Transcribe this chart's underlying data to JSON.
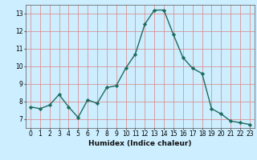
{
  "x": [
    0,
    1,
    2,
    3,
    4,
    5,
    6,
    7,
    8,
    9,
    10,
    11,
    12,
    13,
    14,
    15,
    16,
    17,
    18,
    19,
    20,
    21,
    22,
    23
  ],
  "y": [
    7.7,
    7.6,
    7.8,
    8.4,
    7.7,
    7.1,
    8.1,
    7.9,
    8.8,
    8.9,
    9.9,
    10.7,
    12.4,
    13.2,
    13.2,
    11.8,
    10.5,
    9.9,
    9.6,
    7.6,
    7.3,
    6.9,
    6.8,
    6.7
  ],
  "line_color": "#1f6b5e",
  "marker": "D",
  "markersize": 2.2,
  "linewidth": 1.0,
  "xlabel": "Humidex (Indice chaleur)",
  "xlim": [
    -0.5,
    23.5
  ],
  "ylim": [
    6.5,
    13.5
  ],
  "yticks": [
    7,
    8,
    9,
    10,
    11,
    12,
    13
  ],
  "xticks": [
    0,
    1,
    2,
    3,
    4,
    5,
    6,
    7,
    8,
    9,
    10,
    11,
    12,
    13,
    14,
    15,
    16,
    17,
    18,
    19,
    20,
    21,
    22,
    23
  ],
  "bg_color": "#cceeff",
  "grid_color": "#e08080",
  "tick_fontsize": 5.5,
  "xlabel_fontsize": 6.5
}
